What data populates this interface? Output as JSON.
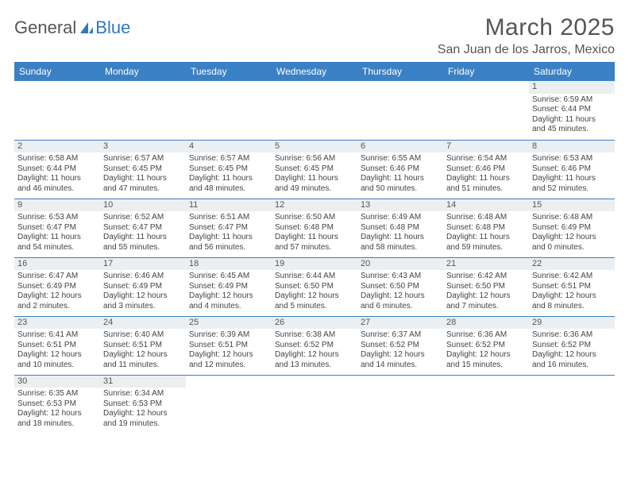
{
  "logo": {
    "text1": "General",
    "text2": "Blue"
  },
  "title": "March 2025",
  "location": "San Juan de los Jarros, Mexico",
  "weekday_header_bg": "#3a80c4",
  "weekdays": [
    "Sunday",
    "Monday",
    "Tuesday",
    "Wednesday",
    "Thursday",
    "Friday",
    "Saturday"
  ],
  "weeks": [
    [
      null,
      null,
      null,
      null,
      null,
      null,
      {
        "d": "1",
        "sr": "Sunrise: 6:59 AM",
        "ss": "Sunset: 6:44 PM",
        "dl1": "Daylight: 11 hours",
        "dl2": "and 45 minutes."
      }
    ],
    [
      {
        "d": "2",
        "sr": "Sunrise: 6:58 AM",
        "ss": "Sunset: 6:44 PM",
        "dl1": "Daylight: 11 hours",
        "dl2": "and 46 minutes."
      },
      {
        "d": "3",
        "sr": "Sunrise: 6:57 AM",
        "ss": "Sunset: 6:45 PM",
        "dl1": "Daylight: 11 hours",
        "dl2": "and 47 minutes."
      },
      {
        "d": "4",
        "sr": "Sunrise: 6:57 AM",
        "ss": "Sunset: 6:45 PM",
        "dl1": "Daylight: 11 hours",
        "dl2": "and 48 minutes."
      },
      {
        "d": "5",
        "sr": "Sunrise: 6:56 AM",
        "ss": "Sunset: 6:45 PM",
        "dl1": "Daylight: 11 hours",
        "dl2": "and 49 minutes."
      },
      {
        "d": "6",
        "sr": "Sunrise: 6:55 AM",
        "ss": "Sunset: 6:46 PM",
        "dl1": "Daylight: 11 hours",
        "dl2": "and 50 minutes."
      },
      {
        "d": "7",
        "sr": "Sunrise: 6:54 AM",
        "ss": "Sunset: 6:46 PM",
        "dl1": "Daylight: 11 hours",
        "dl2": "and 51 minutes."
      },
      {
        "d": "8",
        "sr": "Sunrise: 6:53 AM",
        "ss": "Sunset: 6:46 PM",
        "dl1": "Daylight: 11 hours",
        "dl2": "and 52 minutes."
      }
    ],
    [
      {
        "d": "9",
        "sr": "Sunrise: 6:53 AM",
        "ss": "Sunset: 6:47 PM",
        "dl1": "Daylight: 11 hours",
        "dl2": "and 54 minutes."
      },
      {
        "d": "10",
        "sr": "Sunrise: 6:52 AM",
        "ss": "Sunset: 6:47 PM",
        "dl1": "Daylight: 11 hours",
        "dl2": "and 55 minutes."
      },
      {
        "d": "11",
        "sr": "Sunrise: 6:51 AM",
        "ss": "Sunset: 6:47 PM",
        "dl1": "Daylight: 11 hours",
        "dl2": "and 56 minutes."
      },
      {
        "d": "12",
        "sr": "Sunrise: 6:50 AM",
        "ss": "Sunset: 6:48 PM",
        "dl1": "Daylight: 11 hours",
        "dl2": "and 57 minutes."
      },
      {
        "d": "13",
        "sr": "Sunrise: 6:49 AM",
        "ss": "Sunset: 6:48 PM",
        "dl1": "Daylight: 11 hours",
        "dl2": "and 58 minutes."
      },
      {
        "d": "14",
        "sr": "Sunrise: 6:48 AM",
        "ss": "Sunset: 6:48 PM",
        "dl1": "Daylight: 11 hours",
        "dl2": "and 59 minutes."
      },
      {
        "d": "15",
        "sr": "Sunrise: 6:48 AM",
        "ss": "Sunset: 6:49 PM",
        "dl1": "Daylight: 12 hours",
        "dl2": "and 0 minutes."
      }
    ],
    [
      {
        "d": "16",
        "sr": "Sunrise: 6:47 AM",
        "ss": "Sunset: 6:49 PM",
        "dl1": "Daylight: 12 hours",
        "dl2": "and 2 minutes."
      },
      {
        "d": "17",
        "sr": "Sunrise: 6:46 AM",
        "ss": "Sunset: 6:49 PM",
        "dl1": "Daylight: 12 hours",
        "dl2": "and 3 minutes."
      },
      {
        "d": "18",
        "sr": "Sunrise: 6:45 AM",
        "ss": "Sunset: 6:49 PM",
        "dl1": "Daylight: 12 hours",
        "dl2": "and 4 minutes."
      },
      {
        "d": "19",
        "sr": "Sunrise: 6:44 AM",
        "ss": "Sunset: 6:50 PM",
        "dl1": "Daylight: 12 hours",
        "dl2": "and 5 minutes."
      },
      {
        "d": "20",
        "sr": "Sunrise: 6:43 AM",
        "ss": "Sunset: 6:50 PM",
        "dl1": "Daylight: 12 hours",
        "dl2": "and 6 minutes."
      },
      {
        "d": "21",
        "sr": "Sunrise: 6:42 AM",
        "ss": "Sunset: 6:50 PM",
        "dl1": "Daylight: 12 hours",
        "dl2": "and 7 minutes."
      },
      {
        "d": "22",
        "sr": "Sunrise: 6:42 AM",
        "ss": "Sunset: 6:51 PM",
        "dl1": "Daylight: 12 hours",
        "dl2": "and 8 minutes."
      }
    ],
    [
      {
        "d": "23",
        "sr": "Sunrise: 6:41 AM",
        "ss": "Sunset: 6:51 PM",
        "dl1": "Daylight: 12 hours",
        "dl2": "and 10 minutes."
      },
      {
        "d": "24",
        "sr": "Sunrise: 6:40 AM",
        "ss": "Sunset: 6:51 PM",
        "dl1": "Daylight: 12 hours",
        "dl2": "and 11 minutes."
      },
      {
        "d": "25",
        "sr": "Sunrise: 6:39 AM",
        "ss": "Sunset: 6:51 PM",
        "dl1": "Daylight: 12 hours",
        "dl2": "and 12 minutes."
      },
      {
        "d": "26",
        "sr": "Sunrise: 6:38 AM",
        "ss": "Sunset: 6:52 PM",
        "dl1": "Daylight: 12 hours",
        "dl2": "and 13 minutes."
      },
      {
        "d": "27",
        "sr": "Sunrise: 6:37 AM",
        "ss": "Sunset: 6:52 PM",
        "dl1": "Daylight: 12 hours",
        "dl2": "and 14 minutes."
      },
      {
        "d": "28",
        "sr": "Sunrise: 6:36 AM",
        "ss": "Sunset: 6:52 PM",
        "dl1": "Daylight: 12 hours",
        "dl2": "and 15 minutes."
      },
      {
        "d": "29",
        "sr": "Sunrise: 6:36 AM",
        "ss": "Sunset: 6:52 PM",
        "dl1": "Daylight: 12 hours",
        "dl2": "and 16 minutes."
      }
    ],
    [
      {
        "d": "30",
        "sr": "Sunrise: 6:35 AM",
        "ss": "Sunset: 6:53 PM",
        "dl1": "Daylight: 12 hours",
        "dl2": "and 18 minutes."
      },
      {
        "d": "31",
        "sr": "Sunrise: 6:34 AM",
        "ss": "Sunset: 6:53 PM",
        "dl1": "Daylight: 12 hours",
        "dl2": "and 19 minutes."
      },
      null,
      null,
      null,
      null,
      null
    ]
  ]
}
